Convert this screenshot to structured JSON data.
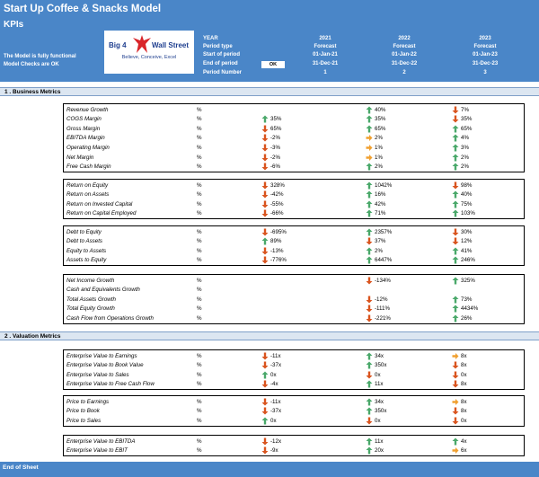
{
  "header": {
    "title": "Start Up Coffee & Snacks Model",
    "subtitle": "KPIs",
    "status_line1": "The Model is fully functional",
    "status_line2": "Model Checks are OK",
    "logo_left": "Big 4",
    "logo_right": "Wall Street",
    "logo_tagline": "Believe, Conceive, Excel",
    "ok_label": "OK",
    "labels": [
      "YEAR",
      "Period type",
      "Start of period",
      "End of period",
      "Period Number"
    ],
    "columns": [
      {
        "year": "2021",
        "type": "Forecast",
        "start": "01-Jan-21",
        "end": "31-Dec-21",
        "num": "1"
      },
      {
        "year": "2022",
        "type": "Forecast",
        "start": "01-Jan-22",
        "end": "31-Dec-22",
        "num": "2"
      },
      {
        "year": "2023",
        "type": "Forecast",
        "start": "01-Jan-23",
        "end": "31-Dec-23",
        "num": "3"
      }
    ]
  },
  "colors": {
    "header_bg": "#4a86c8",
    "up": "#4aa86a",
    "down": "#d9541e",
    "side": "#f0a030"
  },
  "sections": [
    {
      "title": "1 .  Business Metrics",
      "groups": [
        {
          "rows": [
            {
              "label": "Revenue Growth",
              "unit": "%",
              "cells": [
                {},
                {
                  "dir": "up",
                  "v": "40%"
                },
                {
                  "dir": "down",
                  "v": "7%"
                }
              ]
            },
            {
              "label": "COGS Margin",
              "unit": "%",
              "cells": [
                {
                  "dir": "up",
                  "v": "35%"
                },
                {
                  "dir": "up",
                  "v": "35%"
                },
                {
                  "dir": "down",
                  "v": "35%"
                }
              ]
            },
            {
              "label": "Gross Margin",
              "unit": "%",
              "cells": [
                {
                  "dir": "down",
                  "v": "65%"
                },
                {
                  "dir": "up",
                  "v": "65%"
                },
                {
                  "dir": "up",
                  "v": "65%"
                }
              ]
            },
            {
              "label": "EBITDA Margin",
              "unit": "%",
              "cells": [
                {
                  "dir": "down",
                  "v": "-2%"
                },
                {
                  "dir": "side",
                  "v": "2%"
                },
                {
                  "dir": "up",
                  "v": "4%"
                }
              ]
            },
            {
              "label": "Operating Margin",
              "unit": "%",
              "cells": [
                {
                  "dir": "down",
                  "v": "-3%"
                },
                {
                  "dir": "side",
                  "v": "1%"
                },
                {
                  "dir": "up",
                  "v": "3%"
                }
              ]
            },
            {
              "label": "Net Margin",
              "unit": "%",
              "cells": [
                {
                  "dir": "down",
                  "v": "-2%"
                },
                {
                  "dir": "side",
                  "v": "1%"
                },
                {
                  "dir": "up",
                  "v": "2%"
                }
              ]
            },
            {
              "label": "Free Cash Margin",
              "unit": "%",
              "cells": [
                {
                  "dir": "down",
                  "v": "-6%"
                },
                {
                  "dir": "up",
                  "v": "2%"
                },
                {
                  "dir": "up",
                  "v": "2%"
                }
              ]
            }
          ]
        },
        {
          "rows": [
            {
              "label": "Return on Equity",
              "unit": "%",
              "cells": [
                {
                  "dir": "down",
                  "v": "328%"
                },
                {
                  "dir": "up",
                  "v": "1042%"
                },
                {
                  "dir": "down",
                  "v": "98%"
                }
              ]
            },
            {
              "label": "Return on Assets",
              "unit": "%",
              "cells": [
                {
                  "dir": "down",
                  "v": "-42%"
                },
                {
                  "dir": "up",
                  "v": "16%"
                },
                {
                  "dir": "up",
                  "v": "40%"
                }
              ]
            },
            {
              "label": "Return on Invested Capital",
              "unit": "%",
              "cells": [
                {
                  "dir": "down",
                  "v": "-55%"
                },
                {
                  "dir": "up",
                  "v": "42%"
                },
                {
                  "dir": "up",
                  "v": "75%"
                }
              ]
            },
            {
              "label": "Return on Capital Employed",
              "unit": "%",
              "cells": [
                {
                  "dir": "down",
                  "v": "-66%"
                },
                {
                  "dir": "up",
                  "v": "71%"
                },
                {
                  "dir": "up",
                  "v": "103%"
                }
              ]
            }
          ]
        },
        {
          "rows": [
            {
              "label": "Debt to Equity",
              "unit": "%",
              "cells": [
                {
                  "dir": "down",
                  "v": "-695%"
                },
                {
                  "dir": "up",
                  "v": "2357%"
                },
                {
                  "dir": "down",
                  "v": "30%"
                }
              ]
            },
            {
              "label": "Debt to Assets",
              "unit": "%",
              "cells": [
                {
                  "dir": "up",
                  "v": "89%"
                },
                {
                  "dir": "down",
                  "v": "37%"
                },
                {
                  "dir": "down",
                  "v": "12%"
                }
              ]
            },
            {
              "label": "Equity to Assets",
              "unit": "%",
              "cells": [
                {
                  "dir": "down",
                  "v": "-13%"
                },
                {
                  "dir": "up",
                  "v": "2%"
                },
                {
                  "dir": "up",
                  "v": "41%"
                }
              ]
            },
            {
              "label": "Assets to Equity",
              "unit": "%",
              "cells": [
                {
                  "dir": "down",
                  "v": "-776%"
                },
                {
                  "dir": "up",
                  "v": "6447%"
                },
                {
                  "dir": "up",
                  "v": "246%"
                }
              ]
            }
          ]
        },
        {
          "rows": [
            {
              "label": "Net Income Growth",
              "unit": "%",
              "cells": [
                {},
                {
                  "dir": "down",
                  "v": "-134%"
                },
                {
                  "dir": "up",
                  "v": "325%"
                }
              ]
            },
            {
              "label": "Cash and Equivalents Growth",
              "unit": "%",
              "cells": [
                {},
                {},
                {}
              ]
            },
            {
              "label": "Total Assets Growth",
              "unit": "%",
              "cells": [
                {},
                {
                  "dir": "down",
                  "v": "-12%"
                },
                {
                  "dir": "up",
                  "v": "73%"
                }
              ]
            },
            {
              "label": "Total Equity Growth",
              "unit": "%",
              "cells": [
                {},
                {
                  "dir": "down",
                  "v": "-111%"
                },
                {
                  "dir": "up",
                  "v": "4434%"
                }
              ]
            },
            {
              "label": "Cash Flow from Operations Growth",
              "unit": "%",
              "cells": [
                {},
                {
                  "dir": "down",
                  "v": "-221%"
                },
                {
                  "dir": "up",
                  "v": "26%"
                }
              ]
            }
          ]
        }
      ]
    },
    {
      "title": "2 .  Valuation Metrics",
      "groups": [
        {
          "rows": [
            {
              "label": "Enterprise Value to Earnings",
              "unit": "%",
              "cells": [
                {
                  "dir": "down",
                  "v": "-11x"
                },
                {
                  "dir": "up",
                  "v": "34x"
                },
                {
                  "dir": "side",
                  "v": "8x"
                }
              ]
            },
            {
              "label": "Enterprise Value to Book Value",
              "unit": "%",
              "cells": [
                {
                  "dir": "down",
                  "v": "-37x"
                },
                {
                  "dir": "up",
                  "v": "350x"
                },
                {
                  "dir": "down",
                  "v": "8x"
                }
              ]
            },
            {
              "label": "Enterprise Value to Sales",
              "unit": "%",
              "cells": [
                {
                  "dir": "up",
                  "v": "0x"
                },
                {
                  "dir": "down",
                  "v": "0x"
                },
                {
                  "dir": "down",
                  "v": "0x"
                }
              ]
            },
            {
              "label": "Enterprise Value to Free Cash Flow",
              "unit": "%",
              "cells": [
                {
                  "dir": "down",
                  "v": "-4x"
                },
                {
                  "dir": "up",
                  "v": "11x"
                },
                {
                  "dir": "down",
                  "v": "8x"
                }
              ]
            }
          ]
        },
        {
          "rows": [
            {
              "label": "Price to Earnings",
              "unit": "%",
              "cells": [
                {
                  "dir": "down",
                  "v": "-11x"
                },
                {
                  "dir": "up",
                  "v": "34x"
                },
                {
                  "dir": "side",
                  "v": "8x"
                }
              ]
            },
            {
              "label": "Price to Book",
              "unit": "%",
              "cells": [
                {
                  "dir": "down",
                  "v": "-37x"
                },
                {
                  "dir": "up",
                  "v": "350x"
                },
                {
                  "dir": "down",
                  "v": "8x"
                }
              ]
            },
            {
              "label": "Price to Sales",
              "unit": "%",
              "cells": [
                {
                  "dir": "up",
                  "v": "0x"
                },
                {
                  "dir": "down",
                  "v": "0x"
                },
                {
                  "dir": "down",
                  "v": "0x"
                }
              ]
            }
          ]
        },
        {
          "rows": [
            {
              "label": "Enterprise Value to EBITDA",
              "unit": "%",
              "cells": [
                {
                  "dir": "down",
                  "v": "-12x"
                },
                {
                  "dir": "up",
                  "v": "11x"
                },
                {
                  "dir": "up",
                  "v": "4x"
                }
              ]
            },
            {
              "label": "Enterprise Value to EBIT",
              "unit": "%",
              "cells": [
                {
                  "dir": "down",
                  "v": "-9x"
                },
                {
                  "dir": "up",
                  "v": "20x"
                },
                {
                  "dir": "side",
                  "v": "6x"
                }
              ]
            }
          ]
        }
      ]
    }
  ],
  "footer": "End of Sheet"
}
